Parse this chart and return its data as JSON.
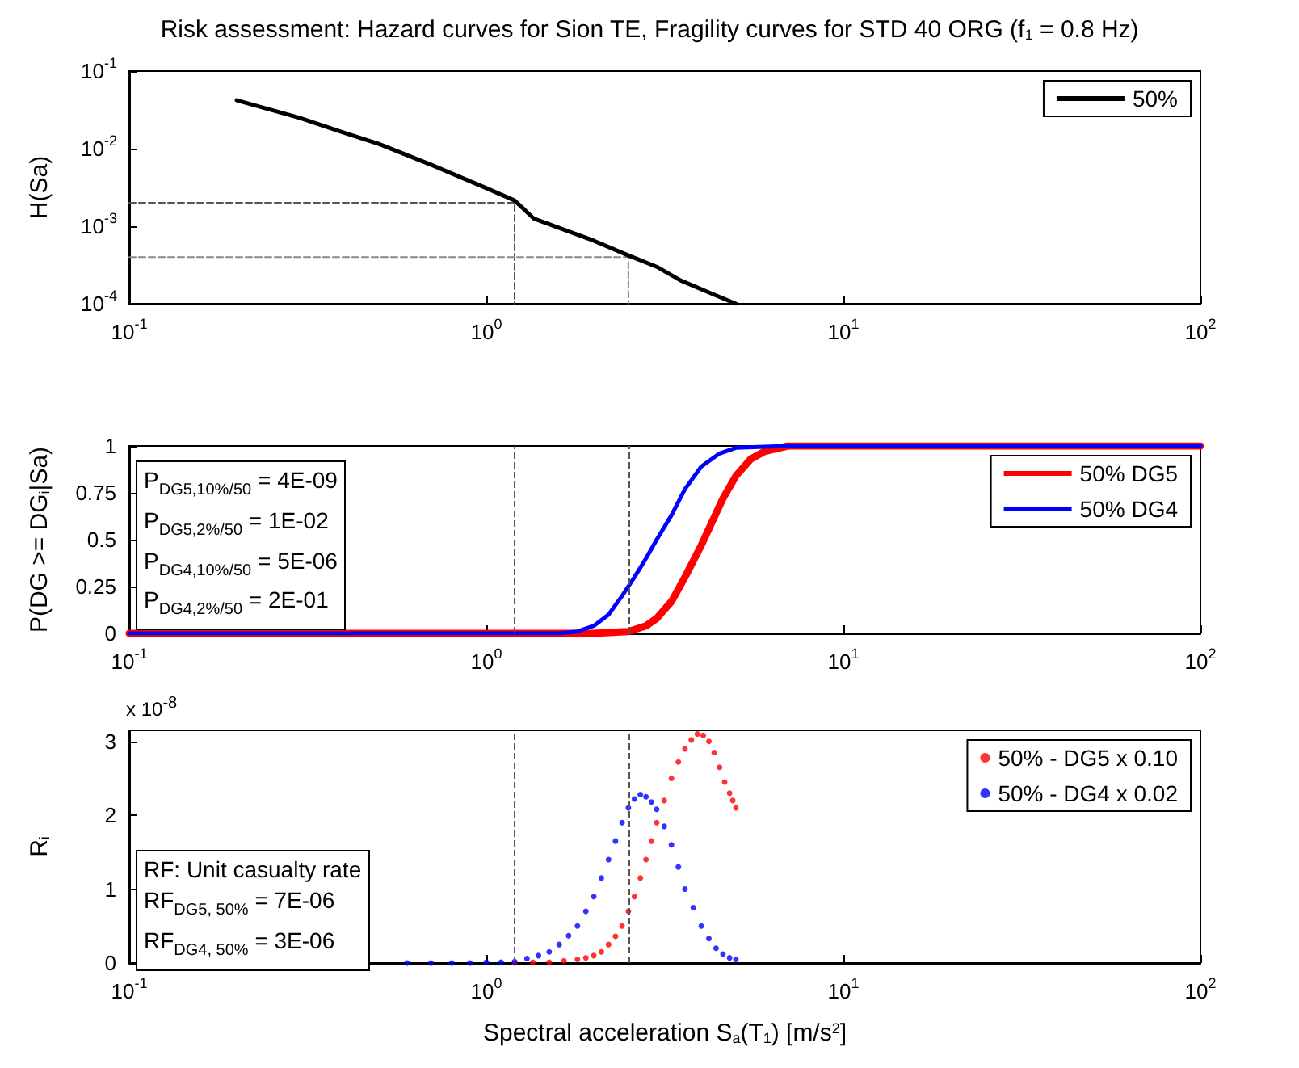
{
  "chart_data": [
    {
      "type": "line",
      "title": "Risk assessment: Hazard curves for Sion TE, Fragility curves for STD 40 ORG (f$_{1}$ = 0.8 Hz)",
      "ylabel": "H(Sa)",
      "log": "xy",
      "xlim": [
        0.1,
        100
      ],
      "ylim": [
        0.0001,
        0.1
      ],
      "xticks": [
        {
          "value": 0.1,
          "label": "10$^{-1}$"
        },
        {
          "value": 1,
          "label": "10$^{0}$"
        },
        {
          "value": 10,
          "label": "10$^{1}$"
        },
        {
          "value": 100,
          "label": "10$^{2}$"
        }
      ],
      "yticks": [
        {
          "value": 0.0001,
          "label": "10$^{-4}$"
        },
        {
          "value": 0.001,
          "label": "10$^{-3}$"
        },
        {
          "value": 0.01,
          "label": "10$^{-2}$"
        },
        {
          "value": 0.1,
          "label": "10$^{-1}$"
        }
      ],
      "legend": "top right",
      "series": [
        {
          "name": "50%",
          "color": "#000000",
          "x": [
            0.2,
            0.3,
            0.4,
            0.5,
            0.7,
            1.0,
            1.2,
            1.36,
            1.6,
            2.0,
            2.5,
            3.0,
            3.5,
            4.2,
            5.0
          ],
          "values": [
            0.042,
            0.025,
            0.016,
            0.0115,
            0.0062,
            0.0031,
            0.00215,
            0.00125,
            0.00095,
            0.00065,
            0.00042,
            0.0003,
            0.0002,
            0.00014,
            0.0001
          ]
        },
        {
          "color": "#555555",
          "line_style": "dashed",
          "x": [
            0.1,
            1.2,
            1.2
          ],
          "values": [
            0.002,
            0.002,
            0.0001
          ]
        },
        {
          "color": "#888888",
          "line_style": "dashed",
          "x": [
            0.1,
            2.5,
            2.5
          ],
          "values": [
            0.0004,
            0.0004,
            0.0001
          ]
        }
      ]
    },
    {
      "type": "line",
      "ylabel": "P(DG >= DG$_{i}$|Sa)",
      "log": "x",
      "xlim": [
        0.1,
        100
      ],
      "ylim": [
        0,
        1
      ],
      "xticks": [
        {
          "value": 0.1,
          "label": "10$^{-1}$"
        },
        {
          "value": 1,
          "label": "10$^{0}$"
        },
        {
          "value": 10,
          "label": "10$^{1}$"
        },
        {
          "value": 100,
          "label": "10$^{2}$"
        }
      ],
      "yticks": [
        0,
        0.25,
        0.5,
        0.75,
        1
      ],
      "legend": "top right",
      "annotations": [
        "P$_{DG5,10%/50}$ = 4E-09",
        "P$_{DG5,2%/50}$ = 1E-02",
        "P$_{DG4,10%/50}$ = 5E-06",
        "P$_{DG4,2%/50}$ = 2E-01"
      ],
      "ref_lines": [
        {
          "axis": "x",
          "value": 1.2,
          "color": "#555555",
          "line_style": "dashed"
        },
        {
          "axis": "x",
          "value": 2.5,
          "color": "#555555",
          "line_style": "dashed"
        }
      ],
      "series": [
        {
          "name": "50% DG5",
          "color": "#ff0000",
          "x": [
            0.1,
            2.0,
            2.5,
            2.8,
            3.0,
            3.3,
            3.6,
            4.0,
            4.3,
            4.6,
            5.0,
            5.5,
            6.0,
            7.0,
            100
          ],
          "values": [
            0,
            0,
            0.01,
            0.04,
            0.08,
            0.17,
            0.3,
            0.47,
            0.6,
            0.72,
            0.84,
            0.93,
            0.97,
            1,
            1
          ]
        },
        {
          "name": "50% DG4",
          "color": "#0000ff",
          "x": [
            0.1,
            1.0,
            1.6,
            1.8,
            2.0,
            2.2,
            2.4,
            2.6,
            2.8,
            3.0,
            3.3,
            3.6,
            4.0,
            4.5,
            5.0,
            7.0,
            100
          ],
          "values": [
            0,
            0,
            0,
            0.01,
            0.04,
            0.1,
            0.2,
            0.3,
            0.4,
            0.5,
            0.63,
            0.77,
            0.89,
            0.96,
            0.99,
            1,
            1
          ]
        }
      ]
    },
    {
      "type": "scatter",
      "ylabel": "R$_{i}$",
      "xlabel": "Spectral acceleration S$_{a}$(T$_{1}$) [m/s$^{2}$]",
      "log": "x",
      "xlim": [
        0.1,
        100
      ],
      "ylim": [
        0,
        3.15
      ],
      "xticks": [
        {
          "value": 0.1,
          "label": "10$^{-1}$"
        },
        {
          "value": 1,
          "label": "10$^{0}$"
        },
        {
          "value": 10,
          "label": "10$^{1}$"
        },
        {
          "value": 100,
          "label": "10$^{2}$"
        }
      ],
      "yticks": [
        0,
        1,
        2,
        3
      ],
      "legend": "top right",
      "marker": "circle",
      "annotations": [
        "x 10$^{-8}$",
        "RF: Unit casualty rate",
        "RF$_{DG5, 50%}$ = 7E-06",
        "RF$_{DG4, 50%}$ = 3E-06"
      ],
      "ref_lines": [
        {
          "axis": "x",
          "value": 1.2,
          "color": "#555555",
          "line_style": "dashed"
        },
        {
          "axis": "x",
          "value": 2.5,
          "color": "#555555",
          "line_style": "dashed"
        }
      ],
      "series": [
        {
          "name": "50% - DG5 x 0.10",
          "color": "#ff0000",
          "x": [
            1.2,
            1.35,
            1.5,
            1.65,
            1.8,
            1.9,
            2.0,
            2.1,
            2.2,
            2.3,
            2.4,
            2.5,
            2.6,
            2.7,
            2.8,
            2.9,
            3.0,
            3.15,
            3.3,
            3.45,
            3.6,
            3.75,
            3.9,
            4.05,
            4.2,
            4.35,
            4.5,
            4.65,
            4.8,
            4.9,
            5.0
          ],
          "values": [
            0,
            0.01,
            0.01,
            0.03,
            0.05,
            0.07,
            0.1,
            0.15,
            0.25,
            0.36,
            0.5,
            0.7,
            0.9,
            1.15,
            1.4,
            1.65,
            1.9,
            2.2,
            2.5,
            2.72,
            2.9,
            3.02,
            3.1,
            3.08,
            3.0,
            2.85,
            2.65,
            2.45,
            2.3,
            2.2,
            2.1
          ]
        },
        {
          "name": "50% - DG4 x 0.02",
          "color": "#0000ff",
          "x": [
            0.6,
            0.7,
            0.8,
            0.9,
            1.0,
            1.1,
            1.2,
            1.3,
            1.4,
            1.5,
            1.6,
            1.7,
            1.8,
            1.9,
            2.0,
            2.1,
            2.2,
            2.3,
            2.4,
            2.5,
            2.6,
            2.7,
            2.8,
            2.9,
            3.0,
            3.15,
            3.3,
            3.45,
            3.6,
            3.8,
            4.0,
            4.2,
            4.4,
            4.6,
            4.8,
            5.0
          ],
          "values": [
            0,
            0,
            0,
            0,
            0.01,
            0.01,
            0.02,
            0.06,
            0.1,
            0.15,
            0.25,
            0.37,
            0.5,
            0.7,
            0.9,
            1.15,
            1.4,
            1.65,
            1.9,
            2.1,
            2.22,
            2.28,
            2.25,
            2.18,
            2.08,
            1.85,
            1.6,
            1.3,
            1.0,
            0.75,
            0.5,
            0.33,
            0.2,
            0.12,
            0.07,
            0.05
          ]
        }
      ]
    }
  ]
}
